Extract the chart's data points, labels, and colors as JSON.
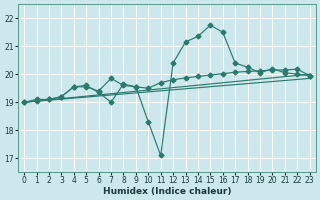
{
  "xlabel": "Humidex (Indice chaleur)",
  "background_color": "#cce8ec",
  "grid_color": "#b8dde2",
  "line_color": "#2a7a6e",
  "xlim": [
    -0.5,
    23.5
  ],
  "ylim": [
    16.5,
    22.5
  ],
  "yticks": [
    17,
    18,
    19,
    20,
    21,
    22
  ],
  "xticks": [
    0,
    1,
    2,
    3,
    4,
    5,
    6,
    7,
    8,
    9,
    10,
    11,
    12,
    13,
    14,
    15,
    16,
    17,
    18,
    19,
    20,
    21,
    22,
    23
  ],
  "jagged_x": [
    0,
    1,
    2,
    3,
    4,
    5,
    6,
    7,
    8,
    9,
    10,
    11,
    12,
    13,
    14,
    15,
    16,
    17,
    18,
    19,
    20,
    21,
    22,
    23
  ],
  "jagged_y": [
    19.0,
    19.1,
    19.1,
    19.2,
    19.55,
    19.6,
    19.35,
    19.0,
    19.65,
    19.55,
    18.3,
    17.1,
    20.4,
    21.15,
    21.35,
    21.75,
    21.5,
    20.4,
    20.25,
    20.05,
    20.2,
    20.05,
    20.0,
    19.95
  ],
  "smooth_x": [
    0,
    1,
    2,
    3,
    4,
    5,
    6,
    7,
    8,
    9,
    10,
    11,
    12,
    13,
    14,
    15,
    16,
    17,
    18,
    19,
    20,
    21,
    22,
    23
  ],
  "smooth_y": [
    19.0,
    19.05,
    19.1,
    19.2,
    19.55,
    19.55,
    19.4,
    19.85,
    19.6,
    19.55,
    19.5,
    19.7,
    19.8,
    19.87,
    19.92,
    19.97,
    20.02,
    20.07,
    20.1,
    20.12,
    20.15,
    20.15,
    20.18,
    19.95
  ],
  "trend1": [
    19.0,
    20.0
  ],
  "trend2": [
    19.0,
    19.85
  ],
  "marker": "D",
  "markersize": 2.5,
  "linewidth": 0.85
}
